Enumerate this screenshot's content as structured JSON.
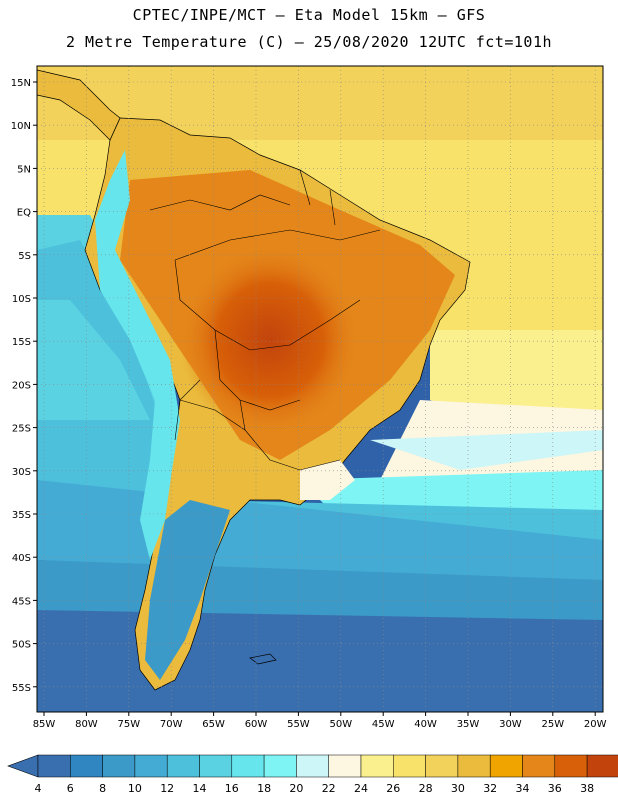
{
  "header": {
    "line1": "CPTEC/INPE/MCT –  Eta Model 15km – GFS",
    "line2": "2 Metre Temperature (C) – 25/08/2020 12UTC fct=101h"
  },
  "axes": {
    "lat_labels": [
      "15N",
      "10N",
      "5N",
      "EQ",
      "5S",
      "10S",
      "15S",
      "20S",
      "25S",
      "30S",
      "35S",
      "40S",
      "45S",
      "50S",
      "55S"
    ],
    "lon_labels": [
      "85W",
      "80W",
      "75W",
      "70W",
      "65W",
      "60W",
      "55W",
      "50W",
      "45W",
      "40W",
      "35W",
      "30W",
      "25W",
      "20W"
    ]
  },
  "colorbar": {
    "values": [
      "4",
      "6",
      "8",
      "10",
      "12",
      "14",
      "16",
      "18",
      "20",
      "22",
      "24",
      "26",
      "28",
      "30",
      "32",
      "34",
      "36",
      "38"
    ],
    "colors": [
      "#3a6faf",
      "#2f86c0",
      "#3b9ac8",
      "#44abd4",
      "#4dc0dc",
      "#5ad2e2",
      "#66e6ec",
      "#7ef4f4",
      "#cdf6f8",
      "#fdf6e0",
      "#fbf08e",
      "#f8e26a",
      "#f2d25a",
      "#eabb3c",
      "#f0a400",
      "#e4861a",
      "#d86008",
      "#c2440c",
      "#b03a10"
    ],
    "low_cap_color": "#3a6faf",
    "high_cap_color": "#b03a10"
  }
}
